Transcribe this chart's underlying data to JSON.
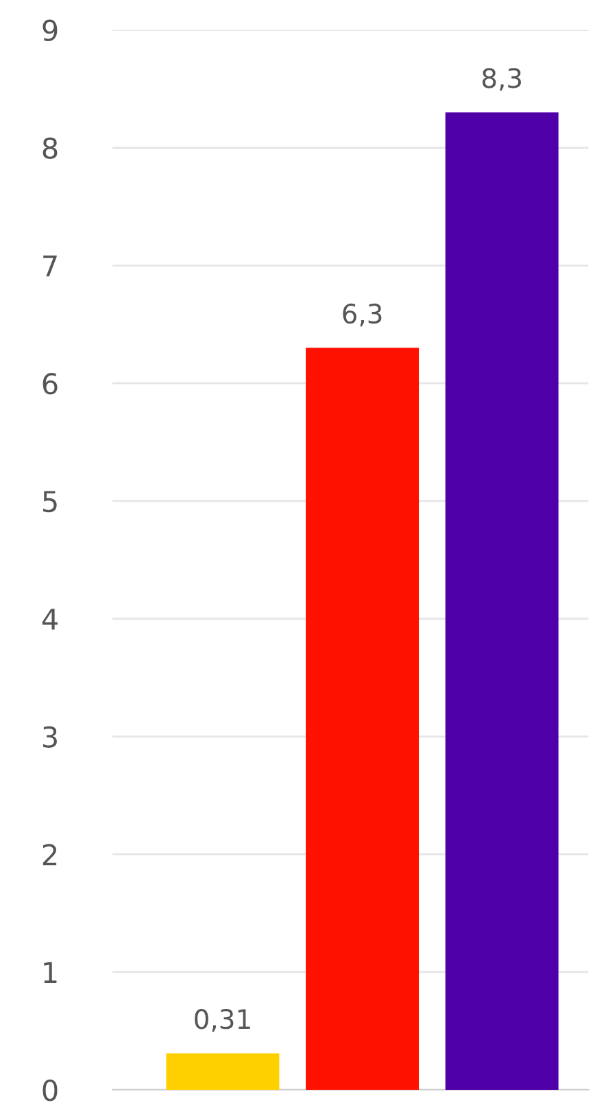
{
  "chart_data": {
    "type": "bar",
    "categories": [
      null,
      null,
      null
    ],
    "values": [
      0.31,
      6.3,
      8.3
    ],
    "colors": [
      "#ffd000",
      "#ff1100",
      "#5000a8"
    ],
    "value_labels": [
      "0,31",
      "6,3",
      "8,3"
    ],
    "ylim": [
      0,
      9
    ],
    "yticks": [
      0,
      1,
      2,
      3,
      4,
      5,
      6,
      7,
      8,
      9
    ],
    "grid": "y",
    "legend": false
  }
}
